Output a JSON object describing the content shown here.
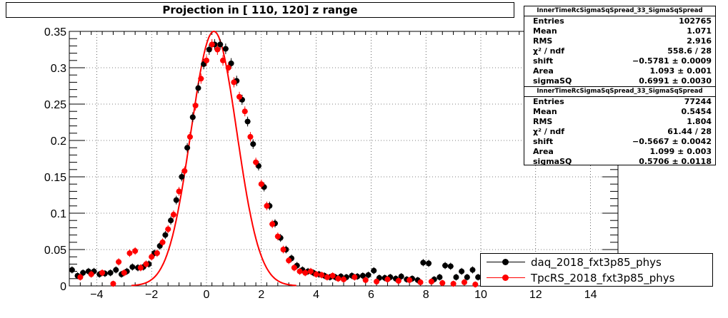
{
  "title": "Projection in [ 110, 120] z range",
  "chart_data": {
    "type": "scatter",
    "xlim": [
      -5,
      15
    ],
    "ylim": [
      0,
      0.35
    ],
    "x_ticks": [
      -4,
      -2,
      0,
      2,
      4,
      6,
      8,
      10,
      12,
      14
    ],
    "y_ticks": [
      0,
      0.05,
      0.1,
      0.15,
      0.2,
      0.25,
      0.3
    ],
    "y_top_label": "0.35",
    "grid": true,
    "colors": {
      "daq": "#000000",
      "tpcrs": "#ff0000"
    },
    "series": [
      {
        "name": "daq_2018_fxt3p85_phys",
        "color": "#000000",
        "x": [
          -4.9,
          -4.7,
          -4.5,
          -4.3,
          -4.1,
          -3.9,
          -3.7,
          -3.5,
          -3.3,
          -3.1,
          -2.9,
          -2.7,
          -2.5,
          -2.3,
          -2.1,
          -1.9,
          -1.7,
          -1.5,
          -1.3,
          -1.1,
          -0.9,
          -0.7,
          -0.5,
          -0.3,
          -0.1,
          0.1,
          0.3,
          0.5,
          0.7,
          0.9,
          1.1,
          1.3,
          1.5,
          1.7,
          1.9,
          2.1,
          2.3,
          2.5,
          2.7,
          2.9,
          3.1,
          3.3,
          3.5,
          3.7,
          3.9,
          4.1,
          4.3,
          4.5,
          4.7,
          4.9,
          5.1,
          5.3,
          5.5,
          5.7,
          5.9,
          6.1,
          6.3,
          6.5,
          6.7,
          6.9,
          7.1,
          7.3,
          7.5,
          7.7,
          7.9,
          8.1,
          8.3,
          8.5,
          8.7,
          8.9,
          9.1,
          9.3,
          9.5,
          9.7,
          9.9,
          10.1,
          10.3,
          10.5
        ],
        "y": [
          0.022,
          0.014,
          0.018,
          0.02,
          0.02,
          0.016,
          0.017,
          0.018,
          0.022,
          0.016,
          0.02,
          0.026,
          0.025,
          0.026,
          0.03,
          0.045,
          0.055,
          0.07,
          0.09,
          0.118,
          0.15,
          0.19,
          0.232,
          0.272,
          0.305,
          0.325,
          0.332,
          0.332,
          0.326,
          0.306,
          0.282,
          0.256,
          0.226,
          0.195,
          0.165,
          0.136,
          0.11,
          0.086,
          0.066,
          0.05,
          0.038,
          0.028,
          0.022,
          0.02,
          0.018,
          0.016,
          0.014,
          0.012,
          0.012,
          0.013,
          0.012,
          0.014,
          0.013,
          0.014,
          0.015,
          0.021,
          0.011,
          0.011,
          0.012,
          0.01,
          0.013,
          0.009,
          0.01,
          0.008,
          0.032,
          0.031,
          0.009,
          0.012,
          0.028,
          0.027,
          0.012,
          0.02,
          0.012,
          0.022,
          0.012,
          0.009,
          0.012,
          0.01
        ]
      },
      {
        "name": "TpcRS_2018_fxt3p85_phys",
        "color": "#ff0000",
        "x": [
          -4.6,
          -4.2,
          -3.8,
          -3.4,
          -3.2,
          -3.0,
          -2.8,
          -2.6,
          -2.4,
          -2.2,
          -2.0,
          -1.8,
          -1.6,
          -1.4,
          -1.2,
          -1.0,
          -0.8,
          -0.6,
          -0.4,
          -0.2,
          0.0,
          0.2,
          0.4,
          0.6,
          0.8,
          1.0,
          1.2,
          1.4,
          1.6,
          1.8,
          2.0,
          2.2,
          2.4,
          2.6,
          2.8,
          3.0,
          3.2,
          3.4,
          3.6,
          3.8,
          4.0,
          4.2,
          4.4,
          4.6,
          4.8,
          5.0,
          5.4,
          5.8,
          6.2,
          6.6,
          7.0,
          7.4,
          7.8,
          8.2,
          8.6,
          9.0,
          9.4,
          9.8
        ],
        "y": [
          0.012,
          0.016,
          0.018,
          0.003,
          0.033,
          0.018,
          0.045,
          0.048,
          0.025,
          0.03,
          0.04,
          0.045,
          0.06,
          0.078,
          0.098,
          0.13,
          0.158,
          0.205,
          0.248,
          0.285,
          0.31,
          0.332,
          0.325,
          0.31,
          0.3,
          0.28,
          0.26,
          0.24,
          0.205,
          0.17,
          0.14,
          0.11,
          0.085,
          0.068,
          0.05,
          0.035,
          0.025,
          0.02,
          0.018,
          0.02,
          0.016,
          0.015,
          0.012,
          0.014,
          0.01,
          0.009,
          0.012,
          0.008,
          0.006,
          0.009,
          0.007,
          0.008,
          0.005,
          0.006,
          0.004,
          0.003,
          0.005,
          0.002
        ]
      }
    ],
    "fit_curve": {
      "color": "#ff0000",
      "mu": 0.27,
      "sigma": 0.835,
      "peak": 0.35
    }
  },
  "stats_boxes": [
    {
      "title": "InnerTimeRcSigmaSqSpread_33_SigmaSqSpread",
      "rows": [
        {
          "label": "Entries",
          "value": "102765"
        },
        {
          "label": "Mean",
          "value": "1.071"
        },
        {
          "label": "RMS",
          "value": "2.916"
        },
        {
          "label": "χ² / ndf",
          "value": "558.6 / 28"
        },
        {
          "label": "shift",
          "value": "−0.5781 ± 0.0009"
        },
        {
          "label": "Area",
          "value": "1.093 ± 0.001"
        },
        {
          "label": "sigmaSQ",
          "value": "0.6991 ± 0.0030"
        }
      ]
    },
    {
      "title": "InnerTimeRcSigmaSqSpread_33_SigmaSqSpread",
      "rows": [
        {
          "label": "Entries",
          "value": "77244"
        },
        {
          "label": "Mean",
          "value": "0.5454"
        },
        {
          "label": "RMS",
          "value": "1.804"
        },
        {
          "label": "χ² / ndf",
          "value": "61.44 / 28"
        },
        {
          "label": "shift",
          "value": "−0.5667 ± 0.0042"
        },
        {
          "label": "Area",
          "value": "1.099 ± 0.003"
        },
        {
          "label": "sigmaSQ",
          "value": "0.5706 ± 0.0118"
        }
      ]
    }
  ],
  "legend": [
    {
      "label": "daq_2018_fxt3p85_phys",
      "color": "#000000"
    },
    {
      "label": "TpcRS_2018_fxt3p85_phys",
      "color": "#ff0000"
    }
  ]
}
